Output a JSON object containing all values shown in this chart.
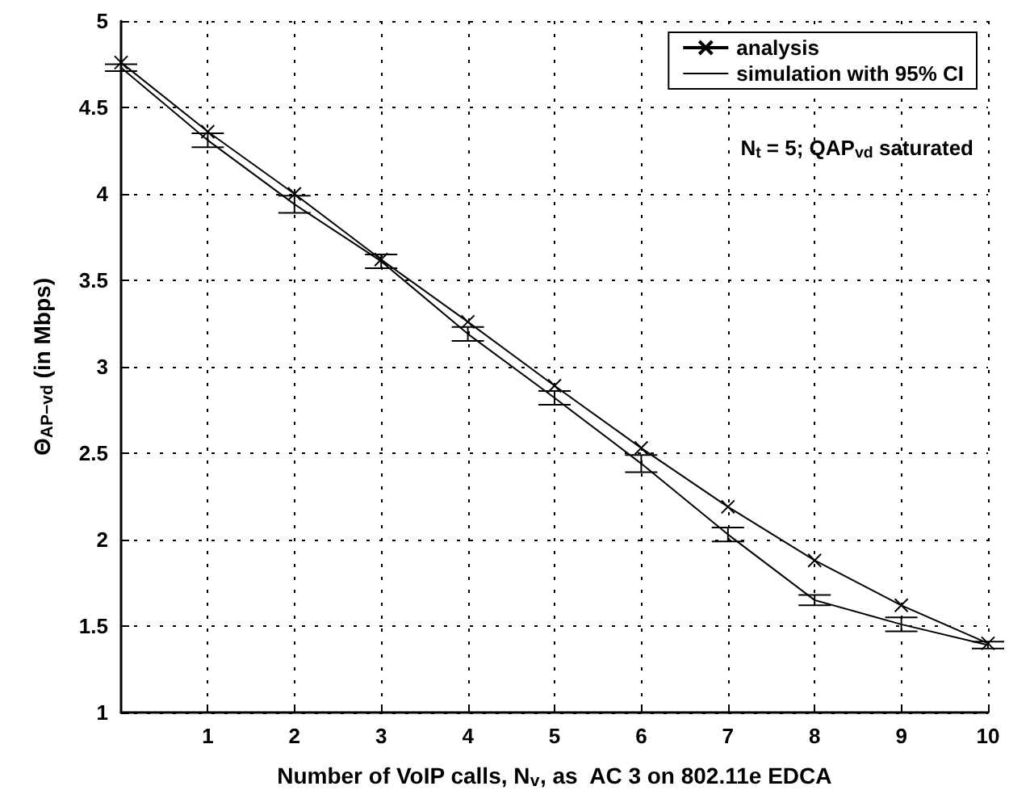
{
  "chart_data": {
    "type": "line",
    "xlabel": "Number of VoIP calls, N$_{v}$, as  AC 3 on 802.11e EDCA",
    "ylabel": "Θ$_{AP−vd}$ (in Mbps)",
    "annotations": [
      "N$_{t}$ = 5; QAP$_{vd}$ saturated"
    ],
    "x": [
      0,
      1,
      2,
      3,
      4,
      5,
      6,
      7,
      8,
      9,
      10
    ],
    "series": [
      {
        "name": "analysis",
        "color": "#000000",
        "marker": "cross",
        "values": [
          4.76,
          4.36,
          4.0,
          3.62,
          3.26,
          2.89,
          2.53,
          2.19,
          1.88,
          1.62,
          1.4
        ]
      },
      {
        "name": "simulation with 95% CI",
        "color": "#000000",
        "marker": "none",
        "values": [
          4.73,
          4.31,
          3.94,
          3.61,
          3.19,
          2.82,
          2.44,
          2.03,
          1.65,
          1.51,
          1.39
        ],
        "errors": [
          0.02,
          0.04,
          0.05,
          0.04,
          0.04,
          0.04,
          0.05,
          0.04,
          0.03,
          0.04,
          0.02
        ]
      }
    ],
    "xlim": [
      0,
      10
    ],
    "xticks": [
      1,
      2,
      3,
      4,
      5,
      6,
      7,
      8,
      9,
      10
    ],
    "ylim": [
      1,
      5
    ],
    "yticks": [
      1,
      1.5,
      2,
      2.5,
      3,
      3.5,
      4,
      4.5,
      5
    ],
    "grid": true,
    "legend": "top right",
    "line_style": "solid"
  }
}
